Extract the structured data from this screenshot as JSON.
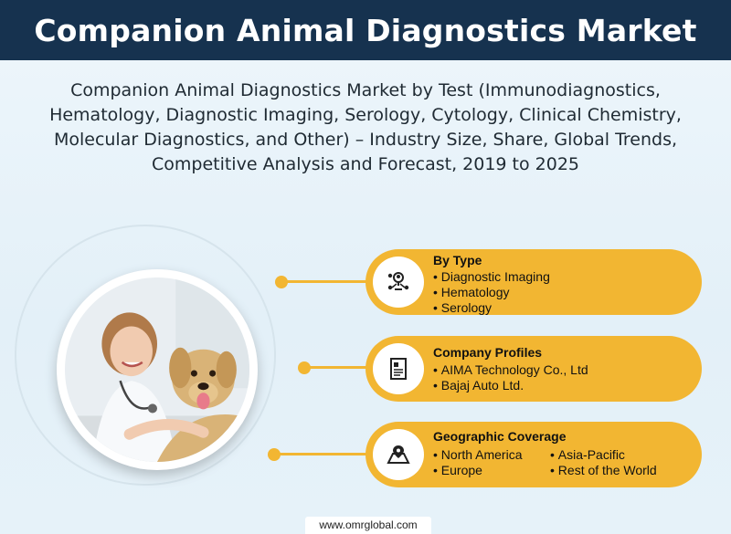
{
  "header": {
    "title": "Companion Animal Diagnostics Market"
  },
  "subtitle": "Companion Animal Diagnostics Market by Test (Immunodiagnostics, Hematology, Diagnostic Imaging, Serology, Cytology, Clinical Chemistry, Molecular Diagnostics, and Other) – Industry Size, Share, Global Trends, Competitive Analysis and Forecast, 2019 to 2025",
  "colors": {
    "header_bg": "#16324f",
    "accent": "#f2b632",
    "background": "#e6f2f9"
  },
  "cards": [
    {
      "icon": "people-network-icon",
      "title": "By Type",
      "items": [
        "Diagnostic Imaging",
        "Hematology",
        "Serology"
      ]
    },
    {
      "icon": "document-icon",
      "title": "Company Profiles",
      "items": [
        "AIMA Technology Co., Ltd",
        "Bajaj Auto Ltd."
      ]
    },
    {
      "icon": "map-pin-icon",
      "title": "Geographic Coverage",
      "items": [
        "North America",
        "Europe",
        "Asia-Pacific",
        "Rest of the World"
      ]
    }
  ],
  "footer": {
    "url": "www.omrglobal.com"
  }
}
